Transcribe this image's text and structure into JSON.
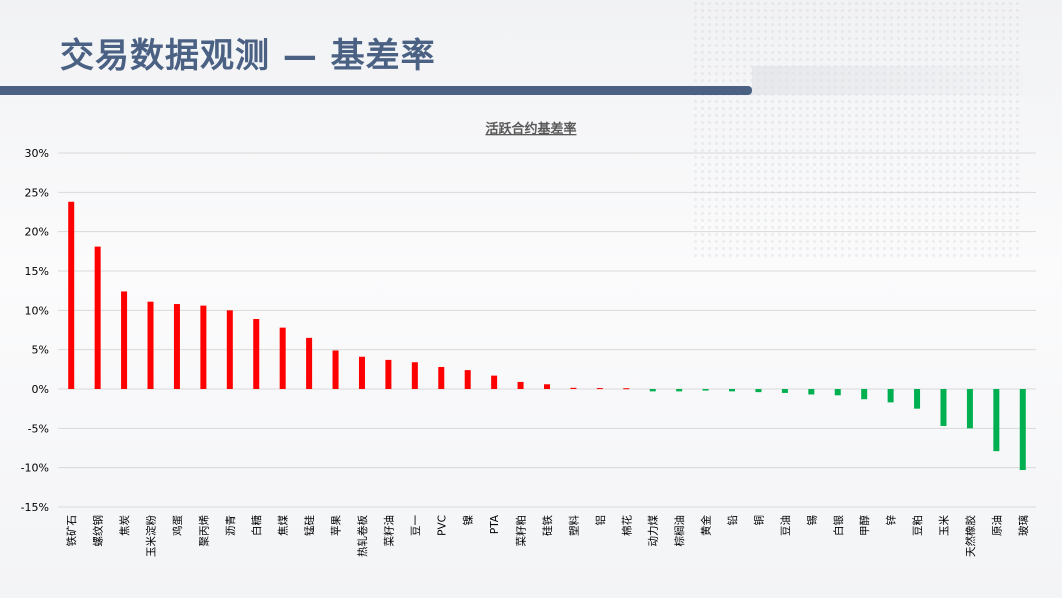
{
  "slide": {
    "title": "交易数据观测 — 基差率"
  },
  "colors": {
    "title": "#4a6184",
    "positive": "#ff0000",
    "negative": "#00b050",
    "grid": "#d9d9d9",
    "text": "#000000"
  },
  "chart_data": {
    "type": "bar",
    "title": "活跃合约基差率",
    "xlabel": "",
    "ylabel": "",
    "ylim": [
      -15,
      30
    ],
    "yticks": [
      "30%",
      "25%",
      "20%",
      "15%",
      "10%",
      "5%",
      "0%",
      "-5%",
      "-10%",
      "-15%"
    ],
    "ytick_values": [
      30,
      25,
      20,
      15,
      10,
      5,
      0,
      -5,
      -10,
      -15
    ],
    "grid": true,
    "legend": "none",
    "categories": [
      "铁矿石",
      "螺纹钢",
      "焦炭",
      "玉米淀粉",
      "鸡蛋",
      "聚丙烯",
      "沥青",
      "白糖",
      "焦煤",
      "锰硅",
      "苹果",
      "热轧卷板",
      "菜籽油",
      "豆一",
      "PVC",
      "镍",
      "PTA",
      "菜籽粕",
      "硅铁",
      "塑料",
      "铝",
      "棉花",
      "动力煤",
      "棕榈油",
      "黄金",
      "铅",
      "铜",
      "豆油",
      "锡",
      "白银",
      "甲醇",
      "锌",
      "豆粕",
      "玉米",
      "天然橡胶",
      "原油",
      "玻璃"
    ],
    "values": [
      23.8,
      18.1,
      12.4,
      11.1,
      10.8,
      10.6,
      10.0,
      8.9,
      7.8,
      6.5,
      4.9,
      4.1,
      3.7,
      3.4,
      2.8,
      2.4,
      1.7,
      0.9,
      0.6,
      0.15,
      0.12,
      0.1,
      -0.3,
      -0.3,
      -0.2,
      -0.3,
      -0.4,
      -0.5,
      -0.7,
      -0.8,
      -1.3,
      -1.7,
      -2.5,
      -4.7,
      -5.0,
      -7.9,
      -10.3
    ]
  }
}
